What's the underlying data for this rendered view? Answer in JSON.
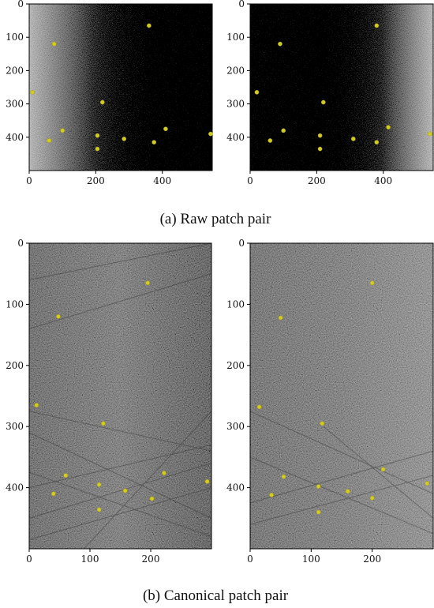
{
  "figure": {
    "captions": {
      "a": "(a) Raw patch pair",
      "b": "(b) Canonical patch pair"
    },
    "accent_color": "#d4cc1e",
    "background_color": "#ffffff"
  },
  "chart_data": [
    {
      "type": "scatter",
      "panel": "raw-left",
      "xlim": [
        0,
        550
      ],
      "ylim": [
        500,
        0
      ],
      "xticks": [
        0,
        200,
        400
      ],
      "yticks": [
        0,
        100,
        200,
        300,
        400
      ],
      "image_style": "dark-right",
      "points": [
        {
          "x": 360,
          "y": 65
        },
        {
          "x": 75,
          "y": 120
        },
        {
          "x": 10,
          "y": 265
        },
        {
          "x": 220,
          "y": 295
        },
        {
          "x": 100,
          "y": 380
        },
        {
          "x": 205,
          "y": 395
        },
        {
          "x": 60,
          "y": 410
        },
        {
          "x": 285,
          "y": 405
        },
        {
          "x": 375,
          "y": 415
        },
        {
          "x": 410,
          "y": 375
        },
        {
          "x": 545,
          "y": 390
        },
        {
          "x": 205,
          "y": 435
        }
      ]
    },
    {
      "type": "scatter",
      "panel": "raw-right",
      "xlim": [
        0,
        550
      ],
      "ylim": [
        500,
        0
      ],
      "xticks": [
        0,
        200,
        400
      ],
      "yticks": [
        0,
        100,
        200,
        300,
        400
      ],
      "image_style": "dark-left",
      "points": [
        {
          "x": 380,
          "y": 65
        },
        {
          "x": 90,
          "y": 120
        },
        {
          "x": 20,
          "y": 265
        },
        {
          "x": 220,
          "y": 295
        },
        {
          "x": 100,
          "y": 380
        },
        {
          "x": 210,
          "y": 395
        },
        {
          "x": 60,
          "y": 410
        },
        {
          "x": 310,
          "y": 405
        },
        {
          "x": 380,
          "y": 415
        },
        {
          "x": 415,
          "y": 370
        },
        {
          "x": 540,
          "y": 390
        },
        {
          "x": 210,
          "y": 435
        }
      ]
    },
    {
      "type": "scatter",
      "panel": "canonical-left",
      "xlim": [
        0,
        300
      ],
      "ylim": [
        500,
        0
      ],
      "xticks": [
        0,
        100,
        200
      ],
      "yticks": [
        0,
        100,
        200,
        300,
        400
      ],
      "image_style": "grey-lines",
      "points": [
        {
          "x": 195,
          "y": 65
        },
        {
          "x": 48,
          "y": 120
        },
        {
          "x": 12,
          "y": 265
        },
        {
          "x": 122,
          "y": 295
        },
        {
          "x": 60,
          "y": 380
        },
        {
          "x": 115,
          "y": 395
        },
        {
          "x": 40,
          "y": 410
        },
        {
          "x": 158,
          "y": 405
        },
        {
          "x": 202,
          "y": 418
        },
        {
          "x": 222,
          "y": 376
        },
        {
          "x": 293,
          "y": 390
        },
        {
          "x": 115,
          "y": 436
        }
      ]
    },
    {
      "type": "scatter",
      "panel": "canonical-right",
      "xlim": [
        0,
        300
      ],
      "ylim": [
        500,
        0
      ],
      "xticks": [
        0,
        100,
        200
      ],
      "yticks": [
        0,
        100,
        200,
        300,
        400
      ],
      "image_style": "grey-texture",
      "points": [
        {
          "x": 200,
          "y": 65
        },
        {
          "x": 50,
          "y": 122
        },
        {
          "x": 15,
          "y": 268
        },
        {
          "x": 118,
          "y": 295
        },
        {
          "x": 55,
          "y": 382
        },
        {
          "x": 112,
          "y": 398
        },
        {
          "x": 35,
          "y": 412
        },
        {
          "x": 160,
          "y": 406
        },
        {
          "x": 200,
          "y": 417
        },
        {
          "x": 218,
          "y": 370
        },
        {
          "x": 290,
          "y": 393
        },
        {
          "x": 112,
          "y": 440
        }
      ]
    }
  ]
}
